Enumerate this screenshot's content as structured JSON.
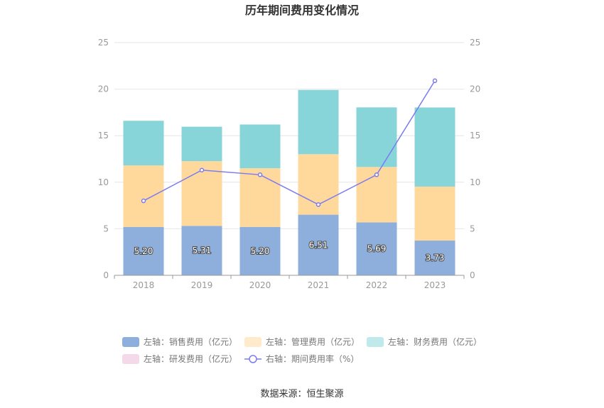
{
  "chart_data": {
    "type": "bar",
    "title": "历年期间费用变化情况",
    "categories": [
      "2018",
      "2019",
      "2020",
      "2021",
      "2022",
      "2023"
    ],
    "series": [
      {
        "name": "左轴：销售费用（亿元）",
        "kind": "stacked-bar",
        "axis": "left",
        "color": "#8eaedb",
        "values": [
          5.2,
          5.31,
          5.2,
          6.51,
          5.69,
          3.73
        ],
        "labels": [
          "5.20",
          "5.31",
          "5.20",
          "6.51",
          "5.69",
          "3.73"
        ]
      },
      {
        "name": "左轴：管理费用（亿元）",
        "kind": "stacked-bar",
        "axis": "left",
        "color": "#ffd89c",
        "values": [
          6.6,
          6.95,
          6.3,
          6.5,
          5.95,
          5.8
        ]
      },
      {
        "name": "左轴：财务费用（亿元）",
        "kind": "stacked-bar",
        "axis": "left",
        "color": "#88d5d9",
        "values": [
          4.8,
          3.7,
          4.7,
          6.9,
          6.4,
          8.5
        ]
      },
      {
        "name": "左轴：研发费用（亿元）",
        "kind": "stacked-bar",
        "axis": "left",
        "color": "#f4d9ea",
        "values": [
          0,
          0,
          0,
          0,
          0,
          0
        ]
      },
      {
        "name": "右轴：期间费用率（%）",
        "kind": "line",
        "axis": "right",
        "color": "#7b7cf0",
        "values": [
          8.0,
          11.3,
          10.8,
          7.6,
          10.8,
          20.9
        ]
      }
    ],
    "left_axis": {
      "min": 0,
      "max": 25,
      "ticks": [
        "0",
        "5",
        "10",
        "15",
        "20",
        "25"
      ]
    },
    "right_axis": {
      "min": 0,
      "max": 25,
      "ticks": [
        "0",
        "5",
        "10",
        "15",
        "20",
        "25"
      ]
    },
    "grid": true,
    "legend_position": "bottom",
    "source": "数据来源：恒生聚源"
  }
}
